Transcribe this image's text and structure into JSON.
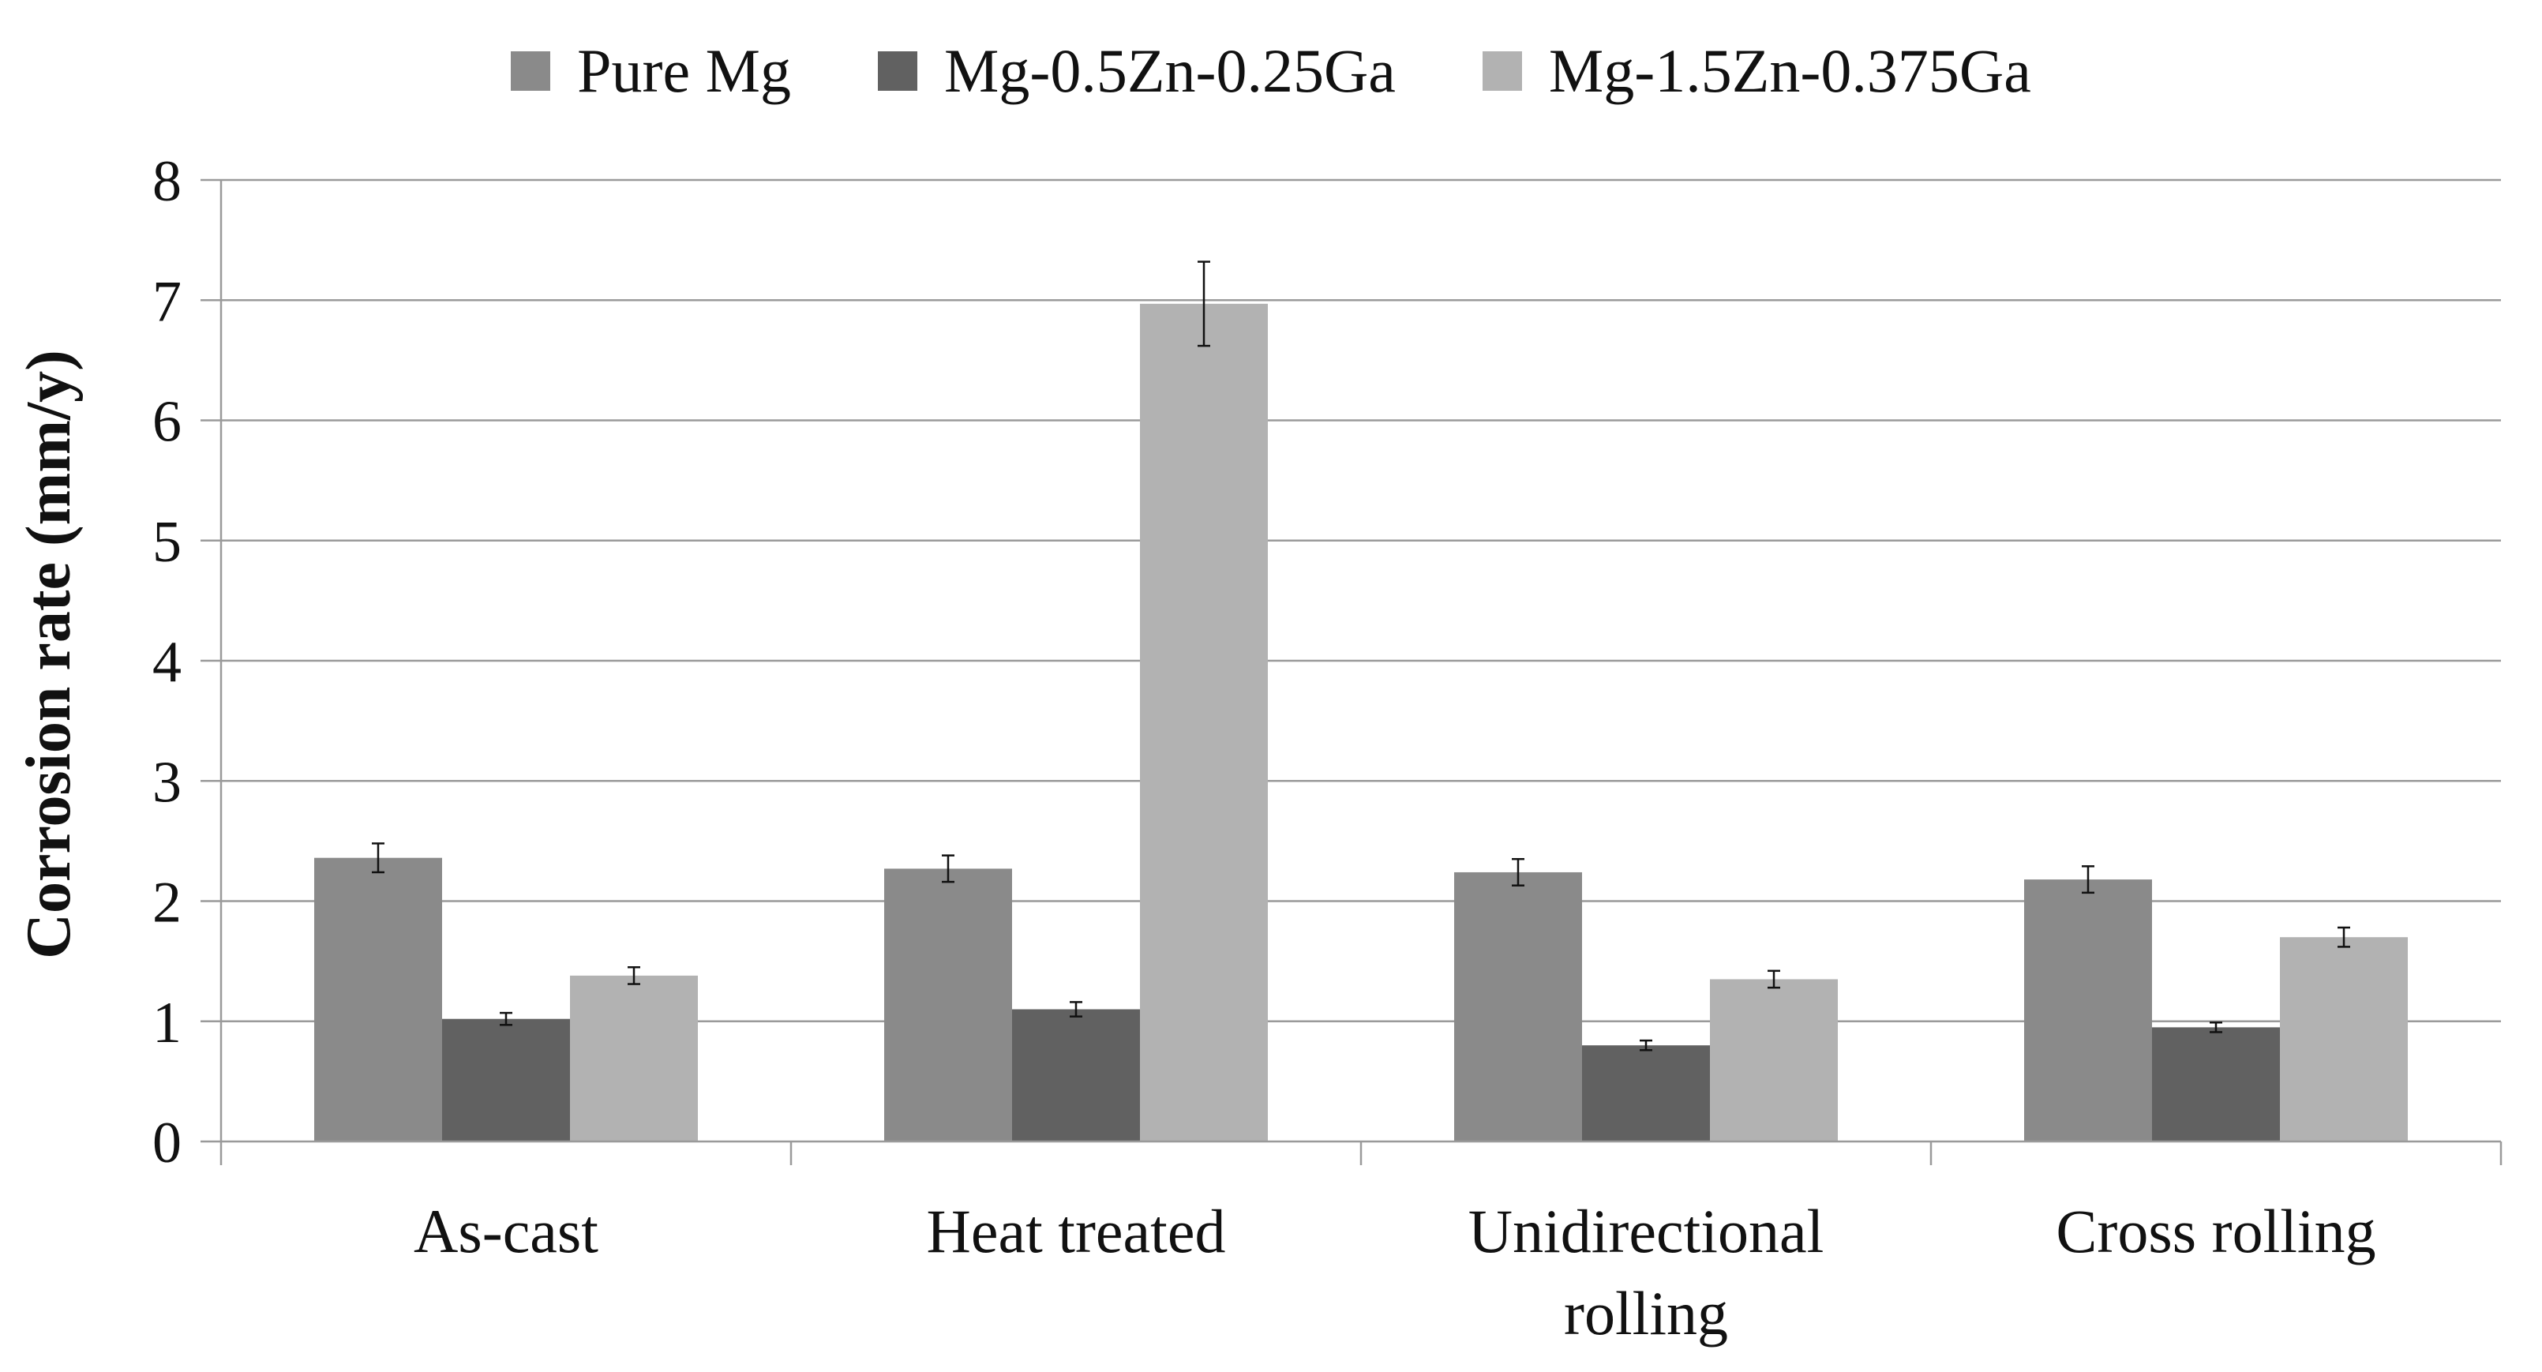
{
  "chart_data": {
    "type": "bar",
    "title": "",
    "xlabel": "",
    "ylabel": "Corrosion rate (mm/y)",
    "ylim": [
      0,
      8
    ],
    "yticks": [
      0,
      1,
      2,
      3,
      4,
      5,
      6,
      7,
      8
    ],
    "grid": true,
    "legend_position": "top-center",
    "categories": [
      [
        "As-cast"
      ],
      [
        "Heat treated"
      ],
      [
        "Unidirectional",
        "rolling"
      ],
      [
        "Cross rolling"
      ]
    ],
    "series": [
      {
        "name": "Pure Mg",
        "color": "#8a8a8a",
        "values": [
          2.36,
          2.27,
          2.24,
          2.18
        ],
        "errors": [
          0.12,
          0.11,
          0.11,
          0.11
        ]
      },
      {
        "name": "Mg-0.5Zn-0.25Ga",
        "color": "#616161",
        "values": [
          1.02,
          1.1,
          0.8,
          0.95
        ],
        "errors": [
          0.05,
          0.06,
          0.04,
          0.04
        ]
      },
      {
        "name": "Mg-1.5Zn-0.375Ga",
        "color": "#b2b2b2",
        "values": [
          1.38,
          6.97,
          1.35,
          1.7
        ],
        "errors": [
          0.07,
          0.35,
          0.07,
          0.08
        ]
      }
    ]
  }
}
